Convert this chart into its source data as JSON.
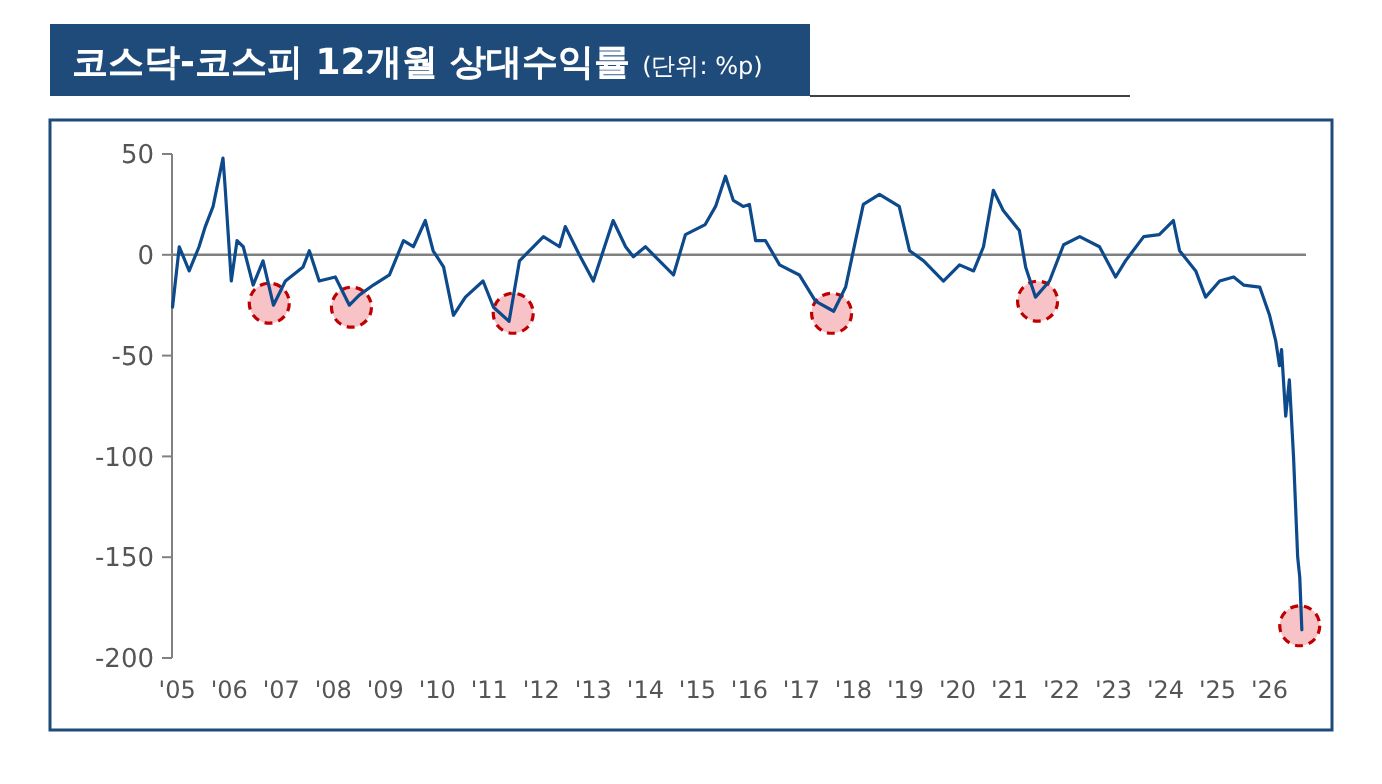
{
  "chart_data": {
    "type": "line",
    "title": "코스닥-코스피 12개월 상대수익률",
    "subtitle": "(단위: %p)",
    "xlim": [
      2004.9,
      2026.7
    ],
    "xticks": [
      {
        "value": 2005,
        "label": "'05"
      },
      {
        "value": 2006,
        "label": "'06"
      },
      {
        "value": 2007,
        "label": "'07"
      },
      {
        "value": 2008,
        "label": "'08"
      },
      {
        "value": 2009,
        "label": "'09"
      },
      {
        "value": 2010,
        "label": "'10"
      },
      {
        "value": 2011,
        "label": "'11"
      },
      {
        "value": 2012,
        "label": "'12"
      },
      {
        "value": 2013,
        "label": "'13"
      },
      {
        "value": 2014,
        "label": "'14"
      },
      {
        "value": 2015,
        "label": "'15"
      },
      {
        "value": 2016,
        "label": "'16"
      },
      {
        "value": 2017,
        "label": "'17"
      },
      {
        "value": 2018,
        "label": "'18"
      },
      {
        "value": 2019,
        "label": "'19"
      },
      {
        "value": 2020,
        "label": "'20"
      },
      {
        "value": 2021,
        "label": "'21"
      },
      {
        "value": 2022,
        "label": "'22"
      },
      {
        "value": 2023,
        "label": "'23"
      },
      {
        "value": 2024,
        "label": "'24"
      },
      {
        "value": 2025,
        "label": "'25"
      },
      {
        "value": 2026,
        "label": "'26"
      }
    ],
    "ylim": [
      -200,
      50
    ],
    "yticks": [
      50,
      0,
      -50,
      -100,
      -150,
      -200
    ],
    "grid": false,
    "ref_lines": [
      {
        "axis": "y",
        "value": 0,
        "color": "#808080"
      }
    ],
    "series": [
      {
        "type": "line",
        "color": "#0d4a8c",
        "x": [
          2004.91,
          2005.04,
          2005.23,
          2005.42,
          2005.54,
          2005.69,
          2005.88,
          2005.92,
          2006.04,
          2006.15,
          2006.27,
          2006.46,
          2006.65,
          2006.85,
          2007.08,
          2007.42,
          2007.54,
          2007.73,
          2008.04,
          2008.31,
          2008.5,
          2008.77,
          2009.08,
          2009.35,
          2009.54,
          2009.77,
          2009.92,
          2010.12,
          2010.31,
          2010.54,
          2010.88,
          2011.08,
          2011.38,
          2011.58,
          2012.04,
          2012.35,
          2012.46,
          2012.73,
          2013.0,
          2013.38,
          2013.62,
          2013.77,
          2014.0,
          2014.54,
          2014.77,
          2015.15,
          2015.35,
          2015.54,
          2015.69,
          2015.88,
          2016.0,
          2016.12,
          2016.31,
          2016.58,
          2016.96,
          2017.27,
          2017.62,
          2017.85,
          2018.04,
          2018.19,
          2018.5,
          2018.88,
          2019.08,
          2019.35,
          2019.73,
          2020.04,
          2020.31,
          2020.5,
          2020.69,
          2020.88,
          2021.19,
          2021.31,
          2021.5,
          2021.77,
          2022.04,
          2022.35,
          2022.73,
          2023.04,
          2023.23,
          2023.58,
          2023.88,
          2024.15,
          2024.27,
          2024.58,
          2024.77,
          2025.04,
          2025.31,
          2025.5,
          2025.81,
          2026.0,
          2026.12,
          2026.19,
          2026.23,
          2026.31,
          2026.38,
          2026.46,
          2026.54,
          2026.58,
          2026.62
        ],
        "values": [
          -26,
          4,
          -8,
          4,
          14,
          24,
          48,
          34,
          -13,
          7,
          4,
          -15,
          -3,
          -25,
          -13,
          -6,
          2,
          -13,
          -11,
          -25,
          -20,
          -15,
          -10,
          7,
          4,
          17,
          2,
          -6,
          -30,
          -21,
          -13,
          -26,
          -33,
          -3,
          9,
          4,
          14,
          0,
          -13,
          17,
          4,
          -1,
          4,
          -10,
          10,
          15,
          24,
          39,
          27,
          24,
          25,
          7,
          7,
          -5,
          -10,
          -23,
          -28,
          -16,
          7,
          25,
          30,
          24,
          2,
          -3,
          -13,
          -5,
          -8,
          4,
          32,
          22,
          12,
          -6,
          -21,
          -13,
          5,
          9,
          4,
          -11,
          -3,
          9,
          10,
          17,
          2,
          -8,
          -21,
          -13,
          -11,
          -15,
          -16,
          -30,
          -43,
          -55,
          -47,
          -80,
          -62,
          -100,
          -150,
          -160,
          -186
        ]
      },
      {
        "type": "scatter",
        "color": "#f7b9bd",
        "marker": "circle",
        "x": [
          2006.77,
          2008.35,
          2011.46,
          2017.58,
          2021.54,
          2026.58
        ],
        "values": [
          -24,
          -26,
          -29,
          -29,
          -23,
          -184
        ]
      }
    ]
  }
}
